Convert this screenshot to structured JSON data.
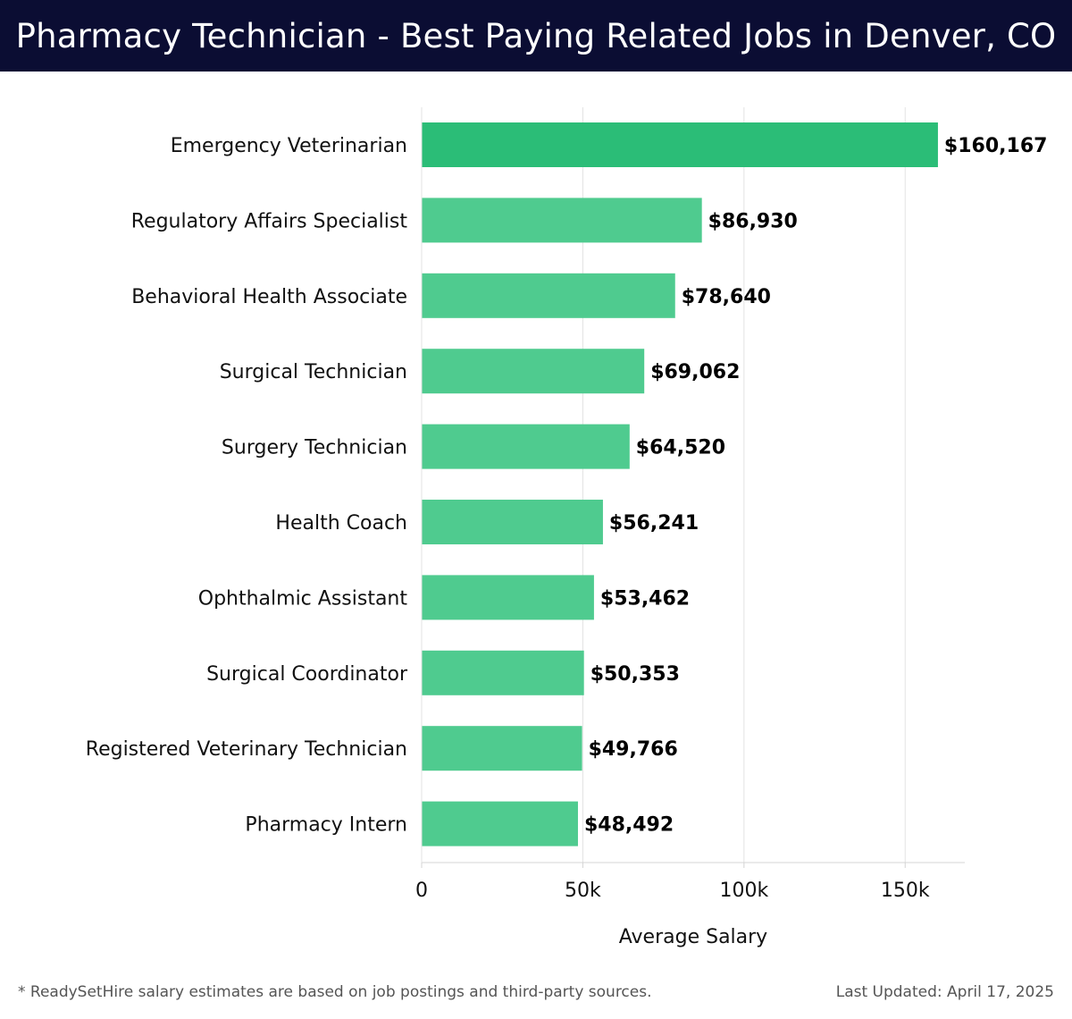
{
  "header": {
    "title": "Pharmacy Technician - Best Paying Related Jobs in Denver, CO"
  },
  "chart_data": {
    "type": "bar",
    "orientation": "horizontal",
    "categories": [
      "Emergency Veterinarian",
      "Regulatory Affairs Specialist",
      "Behavioral Health Associate",
      "Surgical Technician",
      "Surgery Technician",
      "Health Coach",
      "Ophthalmic Assistant",
      "Surgical Coordinator",
      "Registered Veterinary Technician",
      "Pharmacy Intern"
    ],
    "values": [
      160167,
      86930,
      78640,
      69062,
      64520,
      56241,
      53462,
      50353,
      49766,
      48492
    ],
    "value_labels": [
      "$160,167",
      "$86,930",
      "$78,640",
      "$69,062",
      "$64,520",
      "$56,241",
      "$53,462",
      "$50,353",
      "$49,766",
      "$48,492"
    ],
    "xlabel": "Average Salary",
    "xlim": [
      0,
      168500
    ],
    "xticks": [
      0,
      50000,
      100000,
      150000
    ],
    "xtick_labels": [
      "0",
      "50k",
      "100k",
      "150k"
    ],
    "grid": "vertical",
    "colors": {
      "top_bar": "#2bbd77",
      "bar": "#4fcb8f"
    }
  },
  "footer": {
    "note": "* ReadySetHire salary estimates are based on job postings and third-party sources.",
    "updated": "Last Updated: April 17, 2025"
  }
}
